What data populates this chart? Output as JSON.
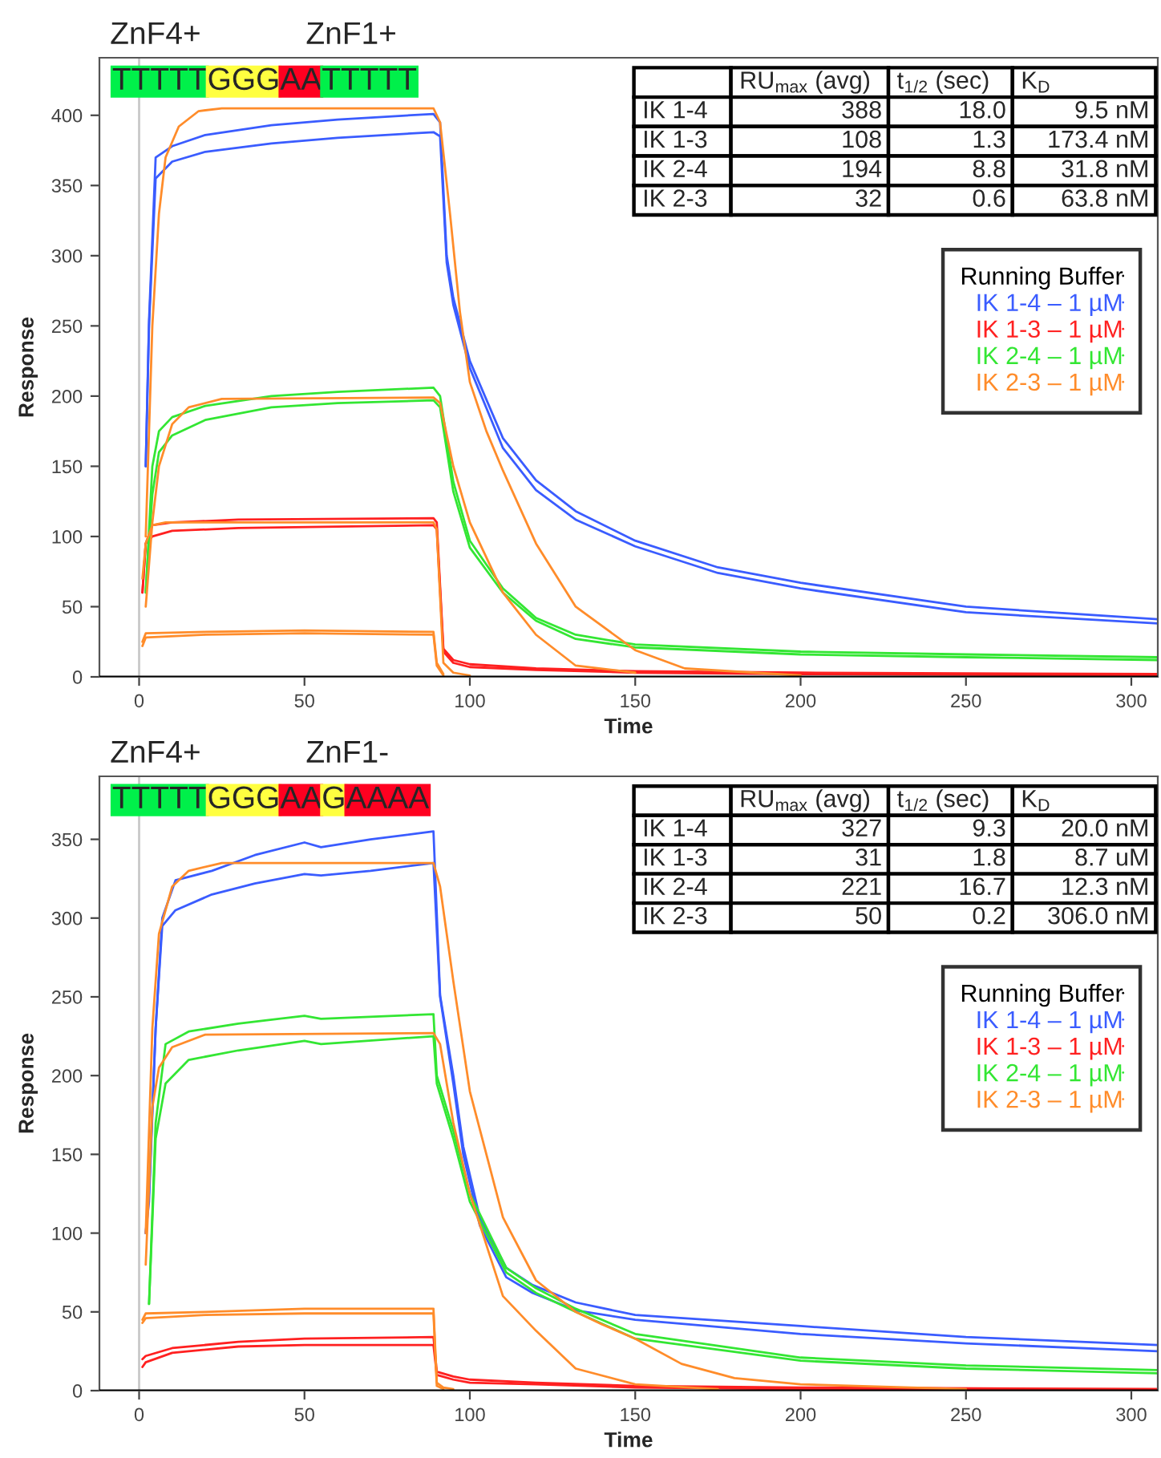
{
  "chart_data": [
    {
      "type": "line",
      "xlabel": "Time",
      "ylabel": "Response",
      "xlim": [
        -12,
        308
      ],
      "ylim": [
        0,
        441
      ],
      "xticks": [
        0,
        50,
        100,
        150,
        200,
        250,
        300
      ],
      "yticks": [
        0,
        50,
        100,
        150,
        200,
        250,
        300,
        350,
        400
      ],
      "legend": "right",
      "ref_lines": [
        {
          "axis": "x",
          "value": 0,
          "color": "#c8c8c8"
        }
      ],
      "annotations": [
        "ZnF4+",
        "ZnF1+",
        "TTTTT",
        "GGG",
        "AA",
        "TTTTT",
        "RU$_{max}$ (avg)",
        "t$_{1/2}$ (sec)",
        "K$_{D}$",
        "IK 1-4",
        "388",
        "18.0",
        "9.5 nM",
        "IK 1-3",
        "108",
        "1.3",
        "173.4 nM",
        "IK 2-4",
        "194",
        "8.8",
        "31.8 nM",
        "IK 2-3",
        "32",
        "0.6",
        "63.8 nM"
      ],
      "series": [
        {
          "name": "Running Buffer",
          "color": "#000000",
          "x": [
            -12,
            308
          ],
          "values": [
            0,
            0
          ]
        },
        {
          "name": "IK 1-4 – 1 µM",
          "color": "#3a5cff",
          "x": [
            2,
            3,
            5,
            10,
            20,
            40,
            60,
            89,
            91,
            93,
            95,
            100,
            110,
            120,
            132,
            150,
            175,
            200,
            250,
            308
          ],
          "values": [
            150,
            254,
            370,
            378,
            386,
            393,
            397,
            401,
            395,
            300,
            270,
            225,
            170,
            140,
            118,
            97,
            78,
            67,
            50,
            41
          ]
        },
        {
          "color": "#3a5cff",
          "x": [
            2,
            3,
            5,
            10,
            20,
            40,
            60,
            89,
            91,
            93,
            95,
            100,
            110,
            120,
            132,
            150,
            175,
            200,
            250,
            308
          ],
          "values": [
            150,
            250,
            355,
            367,
            374,
            380,
            384,
            388,
            385,
            295,
            265,
            220,
            163,
            133,
            112,
            93,
            74,
            63,
            46,
            38
          ]
        },
        {
          "name": "IK 1-3 – 1 µM",
          "color": "#ff2020",
          "x": [
            1,
            2,
            4,
            10,
            30,
            89,
            90,
            92,
            95,
            100,
            120,
            150,
            200,
            308
          ],
          "values": [
            60,
            95,
            108,
            110,
            112,
            113,
            110,
            20,
            12,
            9,
            6,
            4,
            3,
            2
          ]
        },
        {
          "color": "#ff2020",
          "x": [
            1,
            2,
            4,
            10,
            30,
            89,
            90,
            92,
            95,
            100,
            120,
            150,
            200,
            308
          ],
          "values": [
            60,
            95,
            100,
            104,
            106,
            108,
            105,
            18,
            10,
            7,
            5,
            3,
            2,
            1
          ]
        },
        {
          "name": "IK 2-4 – 1 µM",
          "color": "#33e633",
          "x": [
            2,
            4,
            6,
            10,
            20,
            40,
            60,
            89,
            91,
            95,
            100,
            110,
            120,
            132,
            150,
            200,
            250,
            308
          ],
          "values": [
            60,
            150,
            175,
            185,
            193,
            200,
            203,
            206,
            200,
            139,
            97,
            63,
            42,
            30,
            23,
            18,
            16,
            14
          ]
        },
        {
          "color": "#33e633",
          "x": [
            2,
            4,
            6,
            10,
            20,
            40,
            60,
            89,
            91,
            95,
            100,
            110,
            120,
            132,
            150,
            200,
            250,
            308
          ],
          "values": [
            60,
            130,
            160,
            172,
            183,
            192,
            195,
            197,
            192,
            132,
            92,
            60,
            40,
            27,
            21,
            16,
            14,
            12
          ]
        },
        {
          "name": "IK 2-3 – 1 µM",
          "color": "#ff8c2a",
          "x": [
            1,
            2,
            20,
            50,
            89,
            90,
            92
          ],
          "values": [
            25,
            31,
            32,
            33,
            32,
            10,
            2
          ]
        },
        {
          "color": "#ff8c2a",
          "x": [
            1,
            2,
            20,
            50,
            89,
            90,
            92
          ],
          "values": [
            22,
            28,
            30,
            31,
            30,
            8,
            1
          ]
        },
        {
          "color": "#ff8c2a",
          "x": [
            2,
            4,
            6,
            8,
            12,
            18,
            25,
            89,
            91,
            94,
            97,
            100,
            105,
            110,
            120,
            132,
            150,
            165,
            200
          ],
          "values": [
            100,
            250,
            330,
            370,
            392,
            403,
            405,
            405,
            395,
            330,
            260,
            210,
            175,
            147,
            95,
            50,
            19,
            6,
            1
          ]
        },
        {
          "color": "#ff8c2a",
          "x": [
            2,
            4,
            6,
            10,
            15,
            25,
            89,
            91,
            95,
            100,
            110,
            120,
            132,
            150
          ],
          "values": [
            50,
            110,
            150,
            180,
            192,
            198,
            199,
            195,
            150,
            110,
            60,
            30,
            8,
            3
          ]
        },
        {
          "color": "#ff8c2a",
          "x": [
            1,
            2,
            4,
            8,
            89,
            90,
            92,
            95,
            100
          ],
          "values": [
            70,
            95,
            108,
            110,
            110,
            105,
            10,
            3,
            1
          ]
        }
      ]
    },
    {
      "type": "line",
      "xlabel": "Time",
      "ylabel": "Response",
      "xlim": [
        -12,
        308
      ],
      "ylim": [
        0,
        390
      ],
      "xticks": [
        0,
        50,
        100,
        150,
        200,
        250,
        300
      ],
      "yticks": [
        0,
        50,
        100,
        150,
        200,
        250,
        300,
        350
      ],
      "legend": "right",
      "ref_lines": [
        {
          "axis": "x",
          "value": 0,
          "color": "#c8c8c8"
        }
      ],
      "annotations": [
        "ZnF4+",
        "ZnF1-",
        "TTTTT",
        "GGG",
        "AA",
        "G",
        "AAAA",
        "RU$_{max}$ (avg)",
        "t$_{1/2}$ (sec)",
        "K$_{D}$",
        "IK 1-4",
        "327",
        "9.3",
        "20.0 nM",
        "IK 1-3",
        "31",
        "1.8",
        "8.7 uM",
        "IK 2-4",
        "221",
        "16.7",
        "12.3 nM",
        "IK 2-3",
        "50",
        "0.2",
        "306.0 nM"
      ],
      "series": [
        {
          "name": "Running Buffer",
          "color": "#000000",
          "x": [
            -12,
            308
          ],
          "values": [
            0,
            0
          ]
        },
        {
          "name": "IK 1-4 – 1 µM",
          "color": "#3a5cff",
          "x": [
            2,
            3,
            5,
            7,
            11,
            22,
            35,
            50,
            55,
            70,
            89,
            91,
            95,
            98,
            103,
            111,
            119,
            132,
            150,
            200,
            250,
            308
          ],
          "values": [
            100,
            126,
            230,
            300,
            324,
            330,
            340,
            348,
            345,
            350,
            355,
            251,
            200,
            155,
            110,
            78,
            67,
            56,
            48,
            41,
            34,
            29
          ]
        },
        {
          "color": "#3a5cff",
          "x": [
            2,
            3,
            5,
            7,
            11,
            22,
            35,
            50,
            55,
            70,
            89,
            91,
            95,
            98,
            103,
            111,
            119,
            132,
            150,
            200,
            250,
            308
          ],
          "values": [
            100,
            120,
            230,
            295,
            305,
            315,
            322,
            328,
            327,
            330,
            335,
            250,
            195,
            150,
            105,
            72,
            62,
            51,
            45,
            36,
            30,
            25
          ]
        },
        {
          "name": "IK 1-3 – 1 µM",
          "color": "#ff2020",
          "x": [
            1,
            2,
            10,
            30,
            50,
            89,
            90,
            95,
            100,
            120,
            150,
            200,
            308
          ],
          "values": [
            20,
            22,
            27,
            31,
            33,
            34,
            12,
            9,
            7,
            5,
            3,
            2,
            1
          ]
        },
        {
          "color": "#ff2020",
          "x": [
            1,
            2,
            10,
            30,
            50,
            89,
            90,
            95,
            100,
            120,
            150,
            200,
            308
          ],
          "values": [
            15,
            18,
            24,
            28,
            29,
            29,
            10,
            7,
            5,
            4,
            2,
            1,
            1
          ]
        },
        {
          "name": "IK 2-4 – 1 µM",
          "color": "#33e633",
          "x": [
            3,
            5,
            8,
            15,
            30,
            50,
            55,
            89,
            90,
            95,
            100,
            111,
            120,
            132,
            150,
            200,
            250,
            308
          ],
          "values": [
            55,
            170,
            220,
            228,
            233,
            238,
            236,
            239,
            200,
            165,
            125,
            78,
            65,
            52,
            36,
            21,
            16,
            13
          ]
        },
        {
          "color": "#33e633",
          "x": [
            3,
            5,
            8,
            15,
            30,
            50,
            55,
            89,
            90,
            95,
            100,
            111,
            120,
            132,
            150,
            200,
            250,
            308
          ],
          "values": [
            55,
            160,
            195,
            210,
            216,
            222,
            220,
            225,
            195,
            160,
            120,
            75,
            62,
            50,
            33,
            19,
            14,
            11
          ]
        },
        {
          "name": "IK 2-3 – 1 µM",
          "color": "#ff8c2a",
          "x": [
            1,
            2,
            20,
            50,
            89,
            90,
            92,
            95
          ],
          "values": [
            45,
            49,
            50,
            52,
            52,
            5,
            2,
            1
          ]
        },
        {
          "color": "#ff8c2a",
          "x": [
            1,
            2,
            20,
            50,
            89,
            90,
            92
          ],
          "values": [
            43,
            46,
            48,
            49,
            49,
            3,
            1
          ]
        },
        {
          "color": "#ff8c2a",
          "x": [
            2,
            4,
            6,
            10,
            15,
            25,
            89,
            91,
            95,
            100,
            110,
            120,
            132,
            140,
            150,
            164,
            180,
            200,
            250
          ],
          "values": [
            100,
            230,
            290,
            320,
            330,
            335,
            335,
            320,
            260,
            190,
            110,
            70,
            50,
            42,
            33,
            17,
            8,
            4,
            1
          ]
        },
        {
          "color": "#ff8c2a",
          "x": [
            2,
            4,
            6,
            10,
            20,
            89,
            91,
            95,
            100,
            110,
            120,
            132,
            150,
            175
          ],
          "values": [
            80,
            180,
            205,
            218,
            226,
            227,
            220,
            170,
            125,
            60,
            38,
            14,
            4,
            1
          ]
        }
      ]
    }
  ]
}
